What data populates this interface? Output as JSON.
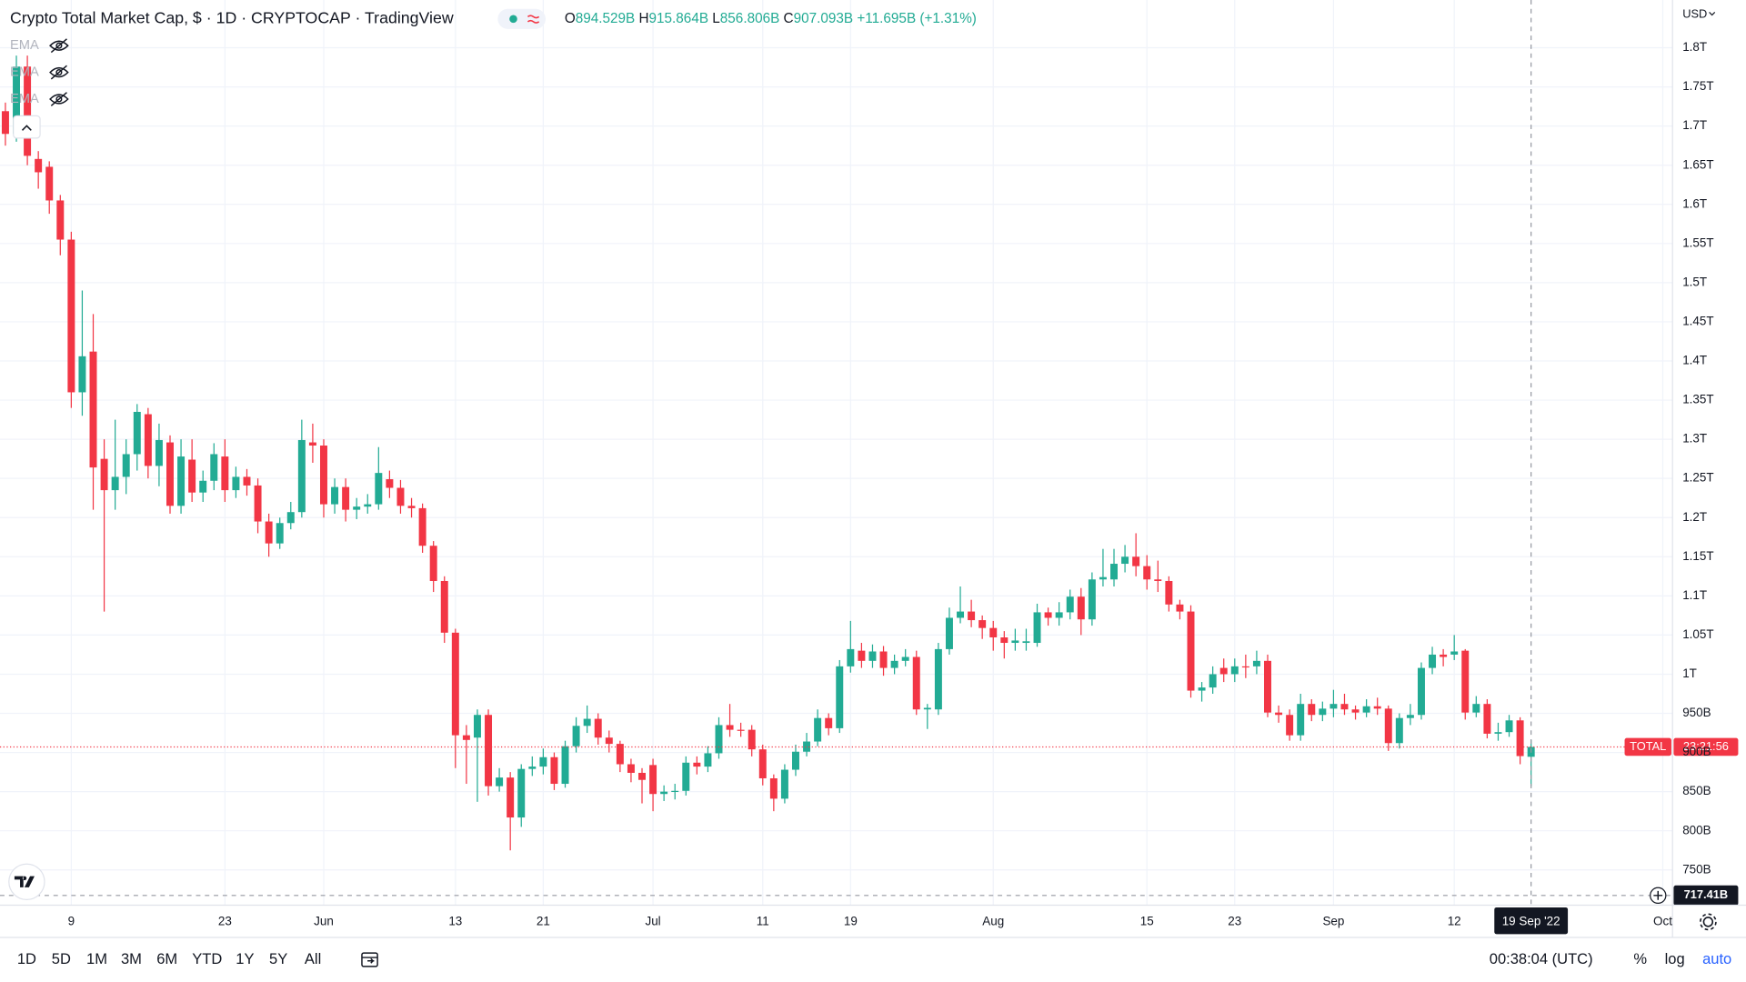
{
  "chart_data": {
    "type": "candlestick",
    "title": "Crypto Total Market Cap, $ · 1D · CRYPTOCAP · TradingView",
    "ohlc_legend": [
      {
        "key": "O",
        "text": "894.529B"
      },
      {
        "key": "H",
        "text": "915.864B"
      },
      {
        "key": "L",
        "text": "856.806B"
      },
      {
        "key": "C",
        "text": "907.093B"
      }
    ],
    "change": "+11.695B (+1.31%)",
    "indicators": [
      "EMA",
      "EMA",
      "EMA"
    ],
    "currency": "USD",
    "up_color": "#22ab94",
    "down_color": "#f23645",
    "grid": true,
    "x": [
      "2022-05-03",
      "2022-05-04",
      "2022-05-05",
      "2022-05-06",
      "2022-05-07",
      "2022-05-08",
      "2022-05-09",
      "2022-05-10",
      "2022-05-11",
      "2022-05-12",
      "2022-05-13",
      "2022-05-14",
      "2022-05-15",
      "2022-05-16",
      "2022-05-17",
      "2022-05-18",
      "2022-05-19",
      "2022-05-20",
      "2022-05-21",
      "2022-05-22",
      "2022-05-23",
      "2022-05-24",
      "2022-05-25",
      "2022-05-26",
      "2022-05-27",
      "2022-05-28",
      "2022-05-29",
      "2022-05-30",
      "2022-05-31",
      "2022-06-01",
      "2022-06-02",
      "2022-06-03",
      "2022-06-04",
      "2022-06-05",
      "2022-06-06",
      "2022-06-07",
      "2022-06-08",
      "2022-06-09",
      "2022-06-10",
      "2022-06-11",
      "2022-06-12",
      "2022-06-13",
      "2022-06-14",
      "2022-06-15",
      "2022-06-16",
      "2022-06-17",
      "2022-06-18",
      "2022-06-19",
      "2022-06-20",
      "2022-06-21",
      "2022-06-22",
      "2022-06-23",
      "2022-06-24",
      "2022-06-25",
      "2022-06-26",
      "2022-06-27",
      "2022-06-28",
      "2022-06-29",
      "2022-06-30",
      "2022-07-01",
      "2022-07-02",
      "2022-07-03",
      "2022-07-04",
      "2022-07-05",
      "2022-07-06",
      "2022-07-07",
      "2022-07-08",
      "2022-07-09",
      "2022-07-10",
      "2022-07-11",
      "2022-07-12",
      "2022-07-13",
      "2022-07-14",
      "2022-07-15",
      "2022-07-16",
      "2022-07-17",
      "2022-07-18",
      "2022-07-19",
      "2022-07-20",
      "2022-07-21",
      "2022-07-22",
      "2022-07-23",
      "2022-07-24",
      "2022-07-25",
      "2022-07-26",
      "2022-07-27",
      "2022-07-28",
      "2022-07-29",
      "2022-07-30",
      "2022-07-31",
      "2022-08-01",
      "2022-08-02",
      "2022-08-03",
      "2022-08-04",
      "2022-08-05",
      "2022-08-06",
      "2022-08-07",
      "2022-08-08",
      "2022-08-09",
      "2022-08-10",
      "2022-08-11",
      "2022-08-12",
      "2022-08-13",
      "2022-08-14",
      "2022-08-15",
      "2022-08-16",
      "2022-08-17",
      "2022-08-18",
      "2022-08-19",
      "2022-08-20",
      "2022-08-21",
      "2022-08-22",
      "2022-08-23",
      "2022-08-24",
      "2022-08-25",
      "2022-08-26",
      "2022-08-27",
      "2022-08-28",
      "2022-08-29",
      "2022-08-30",
      "2022-08-31",
      "2022-09-01",
      "2022-09-02",
      "2022-09-03",
      "2022-09-04",
      "2022-09-05",
      "2022-09-06",
      "2022-09-07",
      "2022-09-08",
      "2022-09-09",
      "2022-09-10",
      "2022-09-11",
      "2022-09-12",
      "2022-09-13",
      "2022-09-14",
      "2022-09-15",
      "2022-09-16",
      "2022-09-17",
      "2022-09-18",
      "2022-09-19"
    ],
    "open": [
      1719,
      1690,
      1776,
      1658,
      1648,
      1605,
      1555,
      1360,
      1412,
      1275,
      1235,
      1252,
      1281,
      1332,
      1266,
      1296,
      1215,
      1274,
      1232,
      1247,
      1278,
      1235,
      1252,
      1241,
      1195,
      1167,
      1193,
      1207,
      1296,
      1292,
      1217,
      1239,
      1210,
      1214,
      1217,
      1249,
      1238,
      1215,
      1212,
      1164,
      1119,
      1053,
      922,
      919,
      948,
      857,
      868,
      817,
      879,
      882,
      894,
      860,
      908,
      934,
      943,
      919,
      911,
      885,
      874,
      884,
      847,
      850,
      851,
      887,
      882,
      899,
      935,
      929,
      929,
      904,
      867,
      841,
      878,
      901,
      914,
      944,
      931,
      1010,
      1030,
      1017,
      1029,
      1008,
      1017,
      1022,
      955,
      955,
      1032,
      1072,
      1080,
      1069,
      1059,
      1047,
      1040,
      1040,
      1040,
      1079,
      1072,
      1079,
      1099,
      1070,
      1121,
      1121,
      1141,
      1150,
      1138,
      1121,
      1119,
      1089,
      1080,
      979,
      983,
      1008,
      1000,
      1010,
      1010,
      1017,
      951,
      948,
      922,
      962,
      948,
      956,
      962,
      955,
      951,
      959,
      956,
      912,
      944,
      948,
      1008,
      1025,
      1025,
      1030,
      951,
      962,
      924,
      926,
      941,
      894.529
    ],
    "high": [
      1730,
      1790,
      1790,
      1668,
      1655,
      1612,
      1565,
      1490,
      1460,
      1300,
      1325,
      1300,
      1345,
      1340,
      1320,
      1305,
      1300,
      1300,
      1260,
      1295,
      1300,
      1265,
      1262,
      1250,
      1205,
      1200,
      1220,
      1325,
      1320,
      1300,
      1250,
      1250,
      1225,
      1230,
      1290,
      1260,
      1248,
      1225,
      1218,
      1170,
      1125,
      1058,
      935,
      955,
      955,
      880,
      875,
      885,
      895,
      905,
      900,
      915,
      945,
      960,
      950,
      928,
      915,
      892,
      880,
      892,
      858,
      860,
      895,
      895,
      908,
      945,
      962,
      938,
      935,
      910,
      872,
      885,
      910,
      925,
      955,
      950,
      1018,
      1068,
      1040,
      1038,
      1036,
      1025,
      1032,
      1030,
      962,
      1040,
      1085,
      1112,
      1095,
      1075,
      1068,
      1055,
      1058,
      1058,
      1090,
      1085,
      1092,
      1108,
      1110,
      1130,
      1160,
      1160,
      1165,
      1180,
      1152,
      1145,
      1125,
      1095,
      1088,
      990,
      1010,
      1020,
      1020,
      1025,
      1030,
      1025,
      960,
      955,
      975,
      968,
      965,
      980,
      975,
      960,
      968,
      970,
      960,
      950,
      962,
      1015,
      1035,
      1032,
      1050,
      1032,
      972,
      968,
      938,
      948,
      945,
      915.864
    ],
    "low": [
      1675,
      1680,
      1650,
      1620,
      1588,
      1535,
      1340,
      1330,
      1210,
      1080,
      1210,
      1230,
      1260,
      1250,
      1240,
      1205,
      1205,
      1220,
      1220,
      1235,
      1220,
      1225,
      1228,
      1180,
      1150,
      1160,
      1185,
      1200,
      1270,
      1200,
      1205,
      1195,
      1198,
      1205,
      1210,
      1225,
      1205,
      1200,
      1155,
      1105,
      1040,
      880,
      860,
      837,
      845,
      850,
      775,
      805,
      870,
      872,
      852,
      855,
      900,
      925,
      910,
      900,
      875,
      862,
      835,
      825,
      838,
      840,
      845,
      872,
      875,
      892,
      920,
      920,
      895,
      858,
      825,
      835,
      870,
      895,
      908,
      922,
      925,
      1002,
      1008,
      1008,
      998,
      1000,
      1010,
      948,
      930,
      948,
      1025,
      1065,
      1060,
      1045,
      1030,
      1020,
      1030,
      1030,
      1035,
      1062,
      1062,
      1070,
      1050,
      1062,
      1112,
      1112,
      1130,
      1125,
      1108,
      1105,
      1080,
      1070,
      970,
      965,
      975,
      990,
      990,
      995,
      1000,
      945,
      938,
      915,
      915,
      940,
      940,
      945,
      948,
      942,
      945,
      948,
      902,
      905,
      935,
      942,
      1000,
      1010,
      1018,
      942,
      945,
      918,
      915,
      920,
      885,
      856.806
    ],
    "close": [
      1690,
      1776,
      1662,
      1641,
      1605,
      1555,
      1360,
      1406,
      1264,
      1235,
      1252,
      1281,
      1335,
      1266,
      1299,
      1215,
      1278,
      1232,
      1247,
      1281,
      1235,
      1252,
      1241,
      1195,
      1167,
      1193,
      1207,
      1299,
      1292,
      1217,
      1239,
      1210,
      1214,
      1217,
      1257,
      1238,
      1215,
      1212,
      1164,
      1119,
      1053,
      922,
      916,
      948,
      857,
      868,
      817,
      879,
      882,
      894,
      860,
      908,
      934,
      943,
      919,
      911,
      885,
      874,
      865,
      847,
      850,
      851,
      887,
      882,
      899,
      935,
      929,
      928,
      904,
      867,
      841,
      878,
      901,
      914,
      944,
      931,
      1010,
      1032,
      1017,
      1029,
      1008,
      1017,
      1022,
      955,
      957,
      1032,
      1072,
      1080,
      1069,
      1059,
      1047,
      1040,
      1043,
      1042,
      1079,
      1072,
      1079,
      1099,
      1070,
      1121,
      1124,
      1141,
      1150,
      1138,
      1121,
      1119,
      1089,
      1080,
      979,
      983,
      1000,
      1000,
      1010,
      1009,
      1017,
      951,
      948,
      922,
      962,
      948,
      956,
      962,
      955,
      951,
      959,
      956,
      912,
      944,
      948,
      1008,
      1025,
      1022,
      1029,
      951,
      962,
      924,
      926,
      941,
      895.398,
      907.093
    ],
    "xlim": [
      "2022-05-02",
      "2022-10-03"
    ],
    "xticks": [
      {
        "value": "2022-05-09",
        "label": "9"
      },
      {
        "value": "2022-05-23",
        "label": "23"
      },
      {
        "value": "2022-06-01",
        "label": "Jun"
      },
      {
        "value": "2022-06-13",
        "label": "13"
      },
      {
        "value": "2022-06-21",
        "label": "21"
      },
      {
        "value": "2022-07-01",
        "label": "Jul"
      },
      {
        "value": "2022-07-11",
        "label": "11"
      },
      {
        "value": "2022-07-19",
        "label": "19"
      },
      {
        "value": "2022-08-01",
        "label": "Aug"
      },
      {
        "value": "2022-08-15",
        "label": "15"
      },
      {
        "value": "2022-08-23",
        "label": "23"
      },
      {
        "value": "2022-09-01",
        "label": "Sep"
      },
      {
        "value": "2022-09-12",
        "label": "12"
      },
      {
        "value": "2022-10-01",
        "label": "Oct"
      }
    ],
    "ylim": [
      705,
      1861
    ],
    "yticks": [
      {
        "value": 750,
        "label": "750B"
      },
      {
        "value": 800,
        "label": "800B"
      },
      {
        "value": 850,
        "label": "850B"
      },
      {
        "value": 900,
        "label": "900B"
      },
      {
        "value": 950,
        "label": "950B"
      },
      {
        "value": 1000,
        "label": "1T"
      },
      {
        "value": 1050,
        "label": "1.05T"
      },
      {
        "value": 1100,
        "label": "1.1T"
      },
      {
        "value": 1150,
        "label": "1.15T"
      },
      {
        "value": 1200,
        "label": "1.2T"
      },
      {
        "value": 1250,
        "label": "1.25T"
      },
      {
        "value": 1300,
        "label": "1.3T"
      },
      {
        "value": 1350,
        "label": "1.35T"
      },
      {
        "value": 1400,
        "label": "1.4T"
      },
      {
        "value": 1450,
        "label": "1.45T"
      },
      {
        "value": 1500,
        "label": "1.5T"
      },
      {
        "value": 1550,
        "label": "1.55T"
      },
      {
        "value": 1600,
        "label": "1.6T"
      },
      {
        "value": 1650,
        "label": "1.65T"
      },
      {
        "value": 1700,
        "label": "1.7T"
      },
      {
        "value": 1750,
        "label": "1.75T"
      },
      {
        "value": 1800,
        "label": "1.8T"
      }
    ],
    "price_label": {
      "symbol": "TOTAL",
      "countdown": "23:21:56"
    },
    "crosshair": {
      "price": {
        "value": 717.41,
        "label": "717.41B"
      },
      "date": {
        "value": "2022-09-19",
        "label": "19 Sep '22"
      }
    }
  },
  "toolbar": {
    "ranges": [
      "1D",
      "5D",
      "1M",
      "3M",
      "6M",
      "YTD",
      "1Y",
      "5Y",
      "All"
    ],
    "clock": "00:38:04 (UTC)",
    "percent": "%",
    "log": "log",
    "auto": "auto"
  }
}
